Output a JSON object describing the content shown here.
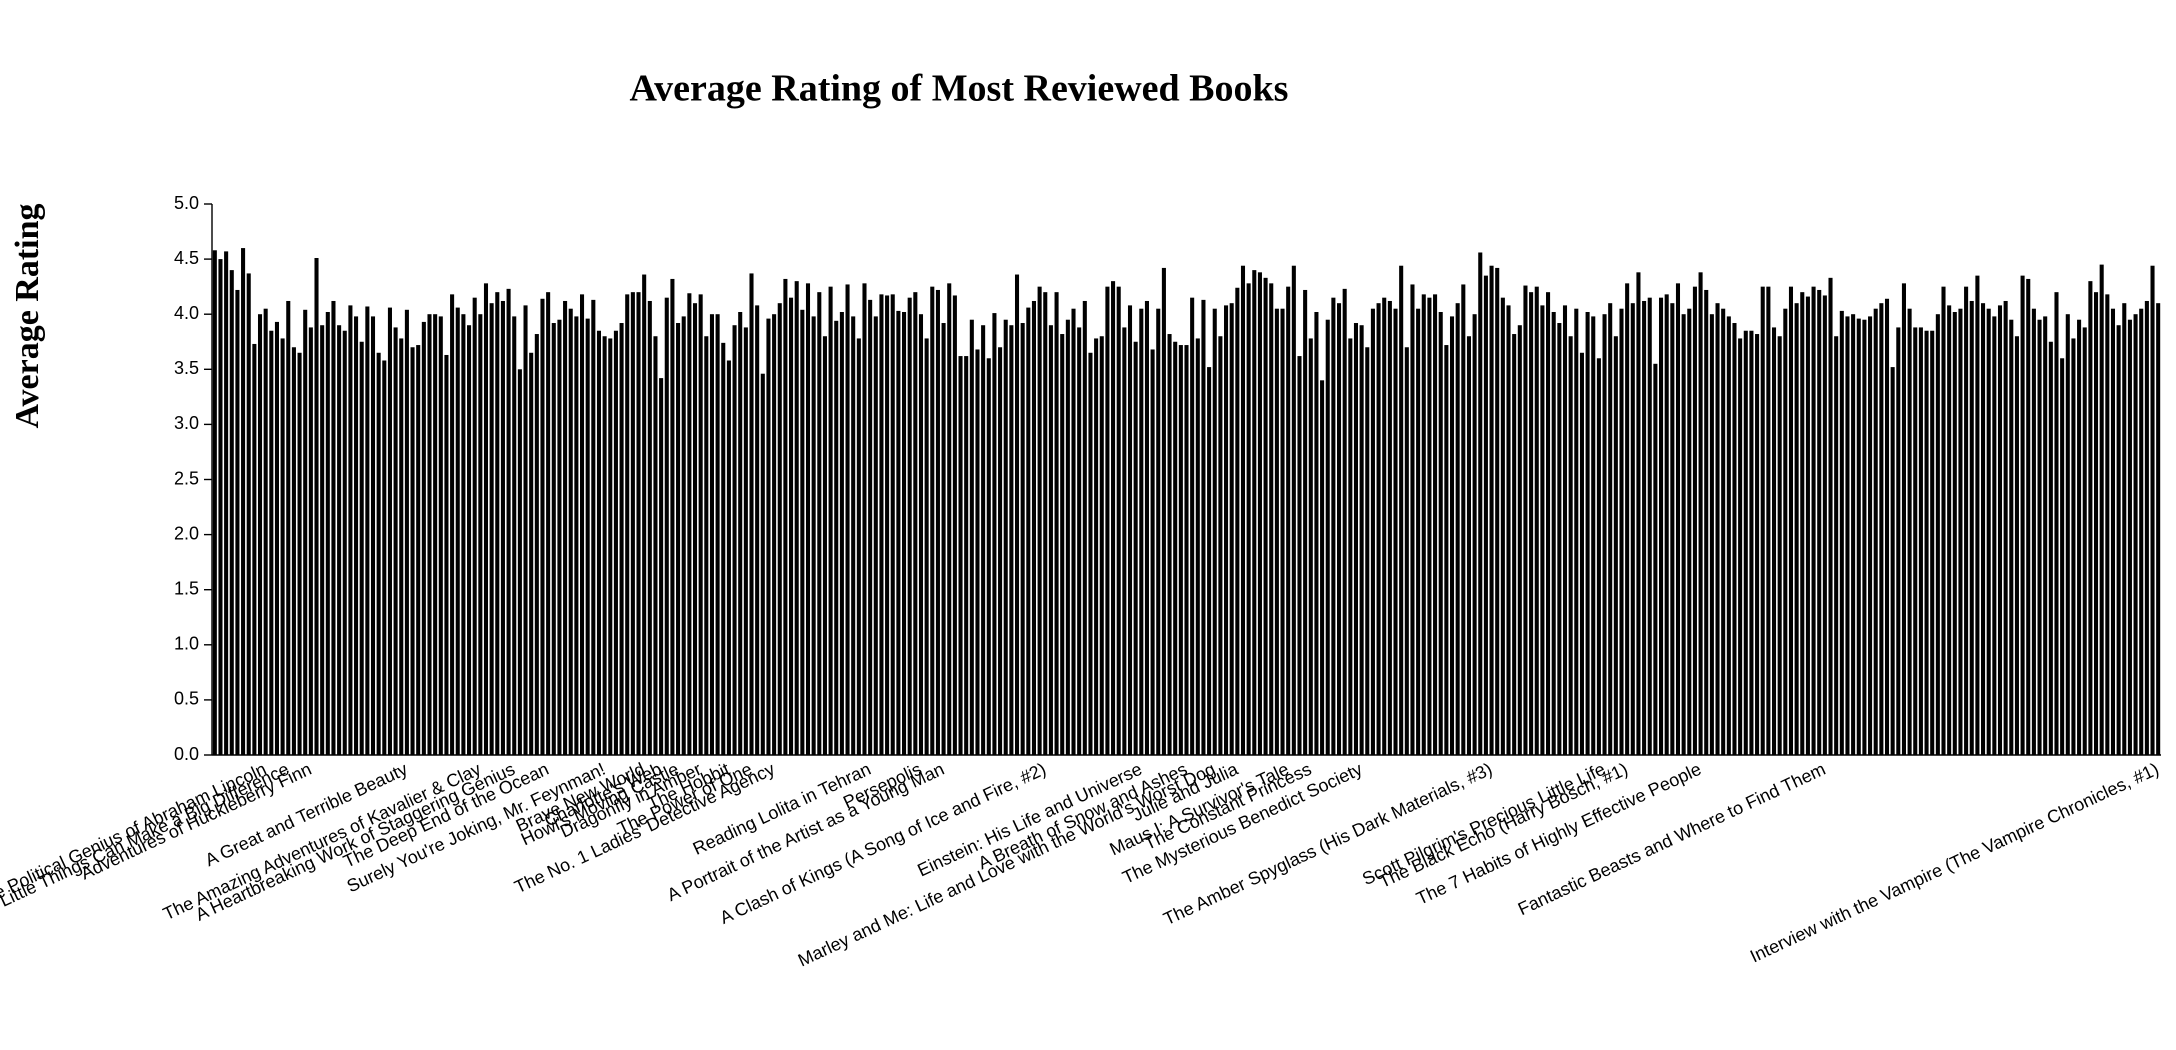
{
  "chart_data": {
    "type": "bar",
    "title": "Average Rating of Most Reviewed Books",
    "y_label": "Average Rating",
    "color": "#000000",
    "grid": false,
    "ylim": [
      0,
      5
    ],
    "yticks": [
      {
        "value": 0,
        "label": "0.0"
      },
      0.5,
      {
        "value": 1,
        "label": "1.0"
      },
      1.5,
      {
        "value": 2,
        "label": "2.0"
      },
      2.5,
      {
        "value": 3,
        "label": "3.0"
      },
      3.5,
      {
        "value": 4,
        "label": "4.0"
      },
      4.5,
      {
        "value": 5,
        "label": "5.0"
      }
    ],
    "categories": [
      null,
      null,
      null,
      null,
      null,
      null,
      null,
      null,
      null,
      "Team of Rivals: The Political Genius of Abraham Lincoln",
      null,
      null,
      null,
      "The Tipping Point: How Little Things Can Make a Big Difference",
      null,
      null,
      null,
      "Adventures of Huckleberry Finn",
      null,
      null,
      null,
      null,
      null,
      null,
      null,
      null,
      null,
      null,
      null,
      null,
      null,
      null,
      null,
      null,
      "A Great and Terrible Beauty",
      null,
      null,
      null,
      null,
      null,
      null,
      null,
      null,
      null,
      null,
      null,
      null,
      "The Amazing Adventures of Kavalier & Clay",
      null,
      null,
      null,
      null,
      null,
      "A Heartbreaking Work of Staggering Genius",
      null,
      null,
      null,
      null,
      null,
      "The Deep End of the Ocean",
      null,
      null,
      null,
      null,
      null,
      null,
      null,
      null,
      null,
      "Surely You're Joking, Mr. Feynman!",
      null,
      null,
      null,
      null,
      null,
      null,
      "Brave New World",
      null,
      null,
      "Charlotte's Web",
      null,
      null,
      "Howl's Moving Castle",
      null,
      null,
      null,
      "Dragonfly in Amber",
      null,
      null,
      null,
      null,
      "The Hobbit",
      null,
      null,
      null,
      "The Power of One",
      null,
      null,
      null,
      "The No. 1 Ladies' Detective Agency",
      null,
      null,
      null,
      null,
      null,
      null,
      null,
      null,
      null,
      null,
      null,
      null,
      null,
      null,
      null,
      null,
      "Reading Lolita in Tehran",
      null,
      null,
      null,
      null,
      null,
      null,
      null,
      null,
      "Persepolis",
      null,
      null,
      null,
      "A Portrait of the Artist as a Young Man",
      null,
      null,
      null,
      null,
      null,
      null,
      null,
      null,
      null,
      null,
      null,
      null,
      null,
      null,
      null,
      null,
      null,
      "A Clash of Kings (A Song of Ice and Fire, #2)",
      null,
      null,
      null,
      null,
      null,
      null,
      null,
      null,
      null,
      null,
      null,
      null,
      null,
      null,
      null,
      null,
      "Einstein: His Life and Universe",
      null,
      null,
      null,
      null,
      null,
      null,
      null,
      "A Breath of Snow and Ashes",
      null,
      null,
      null,
      null,
      "Marley and Me: Life and Love with the World's Worst Dog",
      null,
      null,
      null,
      "Julie and Julia",
      null,
      null,
      null,
      null,
      null,
      null,
      null,
      null,
      "Maus I: A Survivor's Tale",
      null,
      null,
      null,
      "The Constant Princess",
      null,
      null,
      null,
      null,
      null,
      null,
      null,
      null,
      "The Mysterious Benedict Society",
      null,
      null,
      null,
      null,
      null,
      null,
      null,
      null,
      null,
      null,
      null,
      null,
      null,
      null,
      null,
      null,
      null,
      null,
      null,
      null,
      null,
      null,
      "The Amber Spyglass (His Dark Materials, #3)",
      null,
      null,
      null,
      null,
      null,
      null,
      null,
      null,
      null,
      null,
      null,
      null,
      null,
      null,
      null,
      null,
      null,
      null,
      null,
      "Scott Pilgrim's Precious Little Life",
      null,
      null,
      null,
      "The Black Echo (Harry Bosch, #1)",
      null,
      null,
      null,
      null,
      null,
      null,
      null,
      null,
      null,
      null,
      null,
      null,
      "The 7 Habits of Highly Effective People",
      null,
      null,
      null,
      null,
      null,
      null,
      null,
      null,
      null,
      null,
      null,
      null,
      null,
      null,
      null,
      null,
      null,
      null,
      null,
      null,
      null,
      "Fantastic Beasts and Where to Find Them",
      null,
      null,
      null,
      null,
      null,
      null,
      null,
      null,
      null,
      null,
      null,
      null,
      null,
      null,
      null,
      null,
      null,
      null,
      null,
      null,
      null,
      null,
      null,
      null,
      null,
      null,
      null,
      null,
      null,
      null,
      null,
      null,
      null,
      null,
      null,
      null,
      null,
      null,
      null,
      null,
      null,
      null,
      null,
      null,
      null,
      null,
      null,
      null,
      null,
      null,
      null,
      null,
      null,
      null,
      null,
      null,
      null,
      null,
      "Interview with the Vampire (The Vampire Chronicles, #1)"
    ],
    "values": [
      4.58,
      4.5,
      4.57,
      4.4,
      4.22,
      4.6,
      4.37,
      3.73,
      4.0,
      4.05,
      3.85,
      3.93,
      3.78,
      4.12,
      3.7,
      3.65,
      4.04,
      3.88,
      4.51,
      3.9,
      4.02,
      4.12,
      3.9,
      3.85,
      4.08,
      3.98,
      3.75,
      4.07,
      3.98,
      3.65,
      3.58,
      4.06,
      3.88,
      3.78,
      4.04,
      3.7,
      3.72,
      3.93,
      4.0,
      4.0,
      3.98,
      3.63,
      4.18,
      4.06,
      4.0,
      3.9,
      4.15,
      4.0,
      4.28,
      4.1,
      4.2,
      4.12,
      4.23,
      3.98,
      3.5,
      4.08,
      3.65,
      3.82,
      4.14,
      4.2,
      3.92,
      3.95,
      4.12,
      4.05,
      3.98,
      4.18,
      3.96,
      4.13,
      3.85,
      3.8,
      3.78,
      3.85,
      3.92,
      4.18,
      4.2,
      4.2,
      4.36,
      4.12,
      3.8,
      3.42,
      4.15,
      4.32,
      3.92,
      3.98,
      4.19,
      4.1,
      4.18,
      3.8,
      4.0,
      4.0,
      3.74,
      3.58,
      3.9,
      4.02,
      3.88,
      4.37,
      4.08,
      3.46,
      3.96,
      4.0,
      4.1,
      4.32,
      4.15,
      4.3,
      4.04,
      4.28,
      3.98,
      4.2,
      3.8,
      4.25,
      3.94,
      4.02,
      4.27,
      3.98,
      3.78,
      4.28,
      4.13,
      3.98,
      4.18,
      4.17,
      4.18,
      4.03,
      4.02,
      4.15,
      4.2,
      4.0,
      3.78,
      4.25,
      4.22,
      3.92,
      4.28,
      4.17,
      3.62,
      3.62,
      3.95,
      3.68,
      3.9,
      3.6,
      4.01,
      3.7,
      3.95,
      3.9,
      4.36,
      3.92,
      4.06,
      4.12,
      4.25,
      4.2,
      3.9,
      4.2,
      3.82,
      3.95,
      4.05,
      3.88,
      4.12,
      3.65,
      3.78,
      3.8,
      4.25,
      4.3,
      4.25,
      3.88,
      4.08,
      3.75,
      4.05,
      4.12,
      3.68,
      4.05,
      4.42,
      3.82,
      3.75,
      3.72,
      3.72,
      4.15,
      3.78,
      4.13,
      3.52,
      4.05,
      3.8,
      4.08,
      4.1,
      4.24,
      4.44,
      4.28,
      4.4,
      4.38,
      4.33,
      4.28,
      4.05,
      4.05,
      4.25,
      4.44,
      3.62,
      4.22,
      3.78,
      4.02,
      3.4,
      3.95,
      4.15,
      4.1,
      4.23,
      3.78,
      3.92,
      3.9,
      3.7,
      4.05,
      4.1,
      4.15,
      4.12,
      4.05,
      4.44,
      3.7,
      4.27,
      4.05,
      4.18,
      4.15,
      4.18,
      4.02,
      3.72,
      3.98,
      4.1,
      4.27,
      3.8,
      4.0,
      4.56,
      4.35,
      4.44,
      4.42,
      4.15,
      4.08,
      3.82,
      3.9,
      4.26,
      4.2,
      4.25,
      4.08,
      4.2,
      4.02,
      3.92,
      4.08,
      3.8,
      4.05,
      3.65,
      4.02,
      3.98,
      3.6,
      4.0,
      4.1,
      3.8,
      4.05,
      4.28,
      4.1,
      4.38,
      4.12,
      4.15,
      3.55,
      4.15,
      4.18,
      4.1,
      4.28,
      4.0,
      4.05,
      4.25,
      4.38,
      4.22,
      4.0,
      4.1,
      4.05,
      3.98,
      3.92,
      3.78,
      3.85,
      3.85,
      3.82,
      4.25,
      4.25,
      3.88,
      3.8,
      4.05,
      4.25,
      4.1,
      4.2,
      4.16,
      4.25,
      4.22,
      4.17,
      4.33,
      3.8,
      4.03,
      3.98,
      4.0,
      3.96,
      3.95,
      3.98,
      4.05,
      4.1,
      4.14,
      3.52,
      3.88,
      4.28,
      4.05,
      3.88,
      3.88,
      3.85,
      3.85,
      4.0,
      4.25,
      4.08,
      4.02,
      4.05,
      4.25,
      4.12,
      4.35,
      4.1,
      4.05,
      3.98,
      4.08,
      4.12,
      3.95,
      3.8,
      4.35,
      4.32,
      4.05,
      3.95,
      3.98,
      3.75,
      4.2,
      3.6,
      4.0,
      3.78,
      3.95,
      3.88,
      4.3,
      4.2,
      4.45,
      4.18,
      4.05,
      3.9,
      4.1,
      3.95,
      4.0,
      4.05,
      4.12,
      4.44,
      4.1
    ]
  }
}
